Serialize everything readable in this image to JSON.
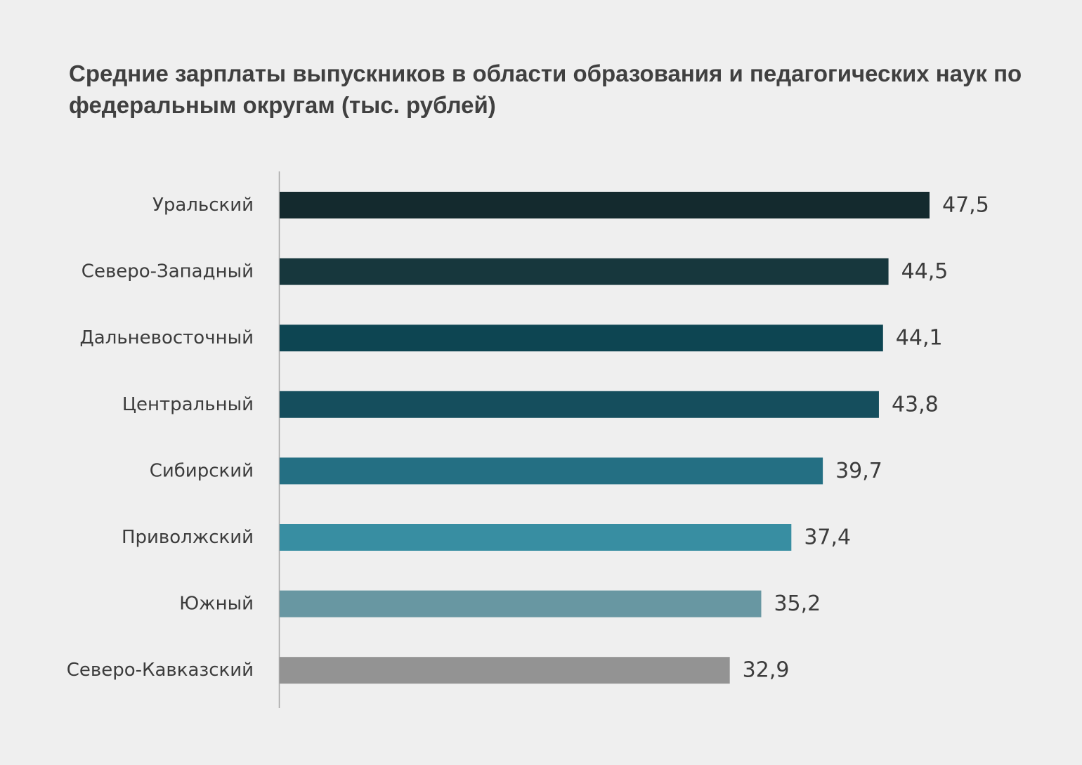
{
  "chart_data": {
    "type": "bar",
    "orientation": "horizontal",
    "title": "Средние зарплаты выпускников в области образования и педагогических наук по федеральным округам (тыс. рублей)",
    "categories": [
      "Уральский",
      "Северо-Западный",
      "Дальневосточный",
      "Центральный",
      "Сибирский",
      "Приволжский",
      "Южный",
      "Северо-Кавказский"
    ],
    "values": [
      47.5,
      44.5,
      44.1,
      43.8,
      39.7,
      37.4,
      35.2,
      32.9
    ],
    "value_labels": [
      "47,5",
      "44,5",
      "44,1",
      "43,8",
      "39,7",
      "37,4",
      "35,2",
      "32,9"
    ],
    "colors": [
      "#142a2e",
      "#17373d",
      "#0d4552",
      "#154e5d",
      "#246f83",
      "#388ea2",
      "#6897a2",
      "#939393"
    ],
    "xlim": [
      0,
      47.5
    ],
    "grid": false,
    "legend": "none"
  }
}
